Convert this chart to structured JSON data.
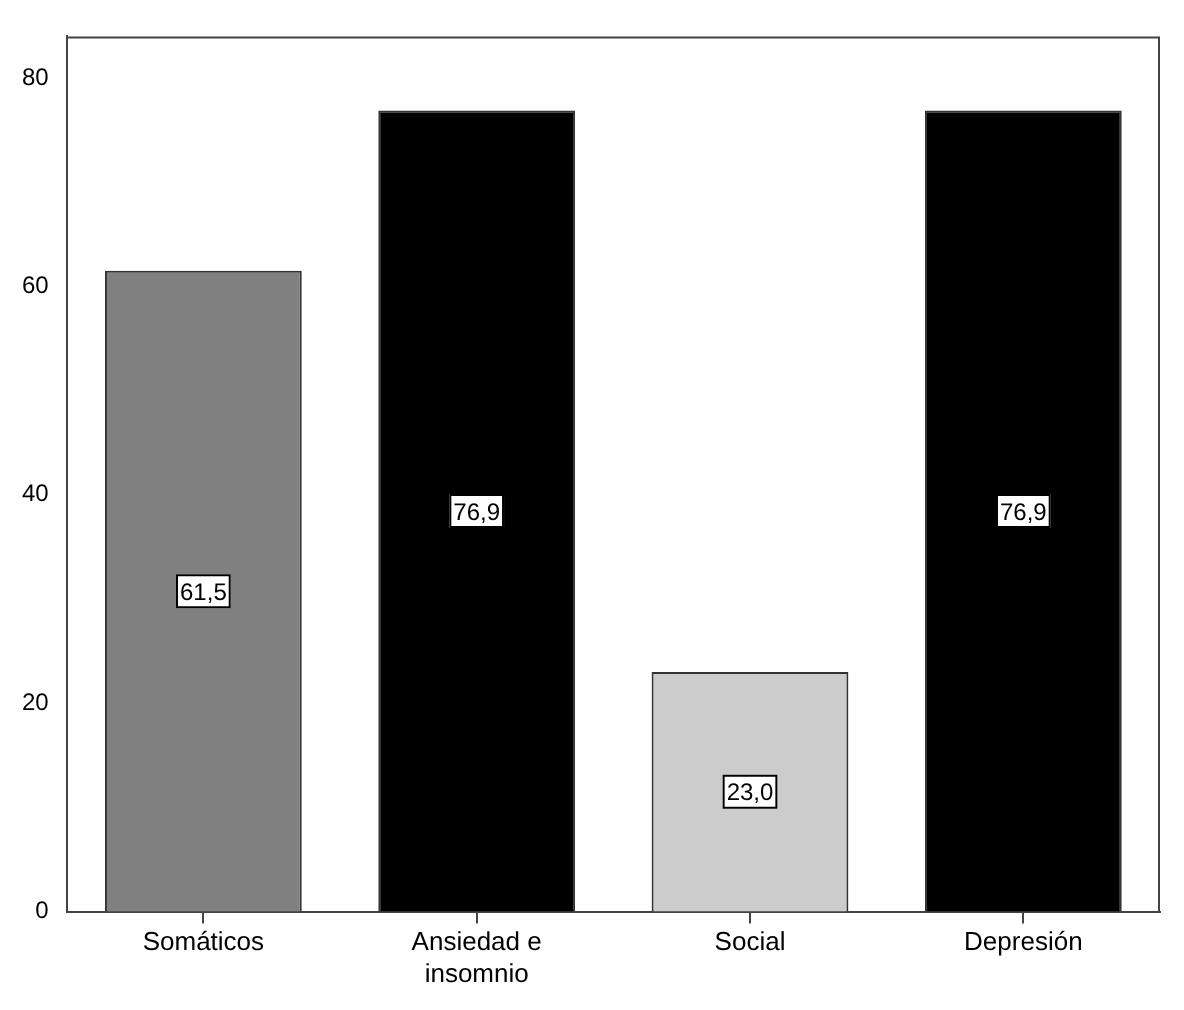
{
  "chart_data": {
    "type": "bar",
    "categories": [
      "Somáticos",
      "Ansiedad e insomnio",
      "Social",
      "Depresión"
    ],
    "values": [
      61.5,
      76.9,
      23.0,
      76.9
    ],
    "colors": [
      "#808080",
      "#000000",
      "#cccccc",
      "#000000"
    ],
    "value_labels": [
      "61,5",
      "76,9",
      "23,0",
      "76,9"
    ],
    "ylim": [
      0,
      84
    ],
    "yticks": [
      0,
      20,
      40,
      60,
      80
    ],
    "grid": false,
    "legend": false
  }
}
